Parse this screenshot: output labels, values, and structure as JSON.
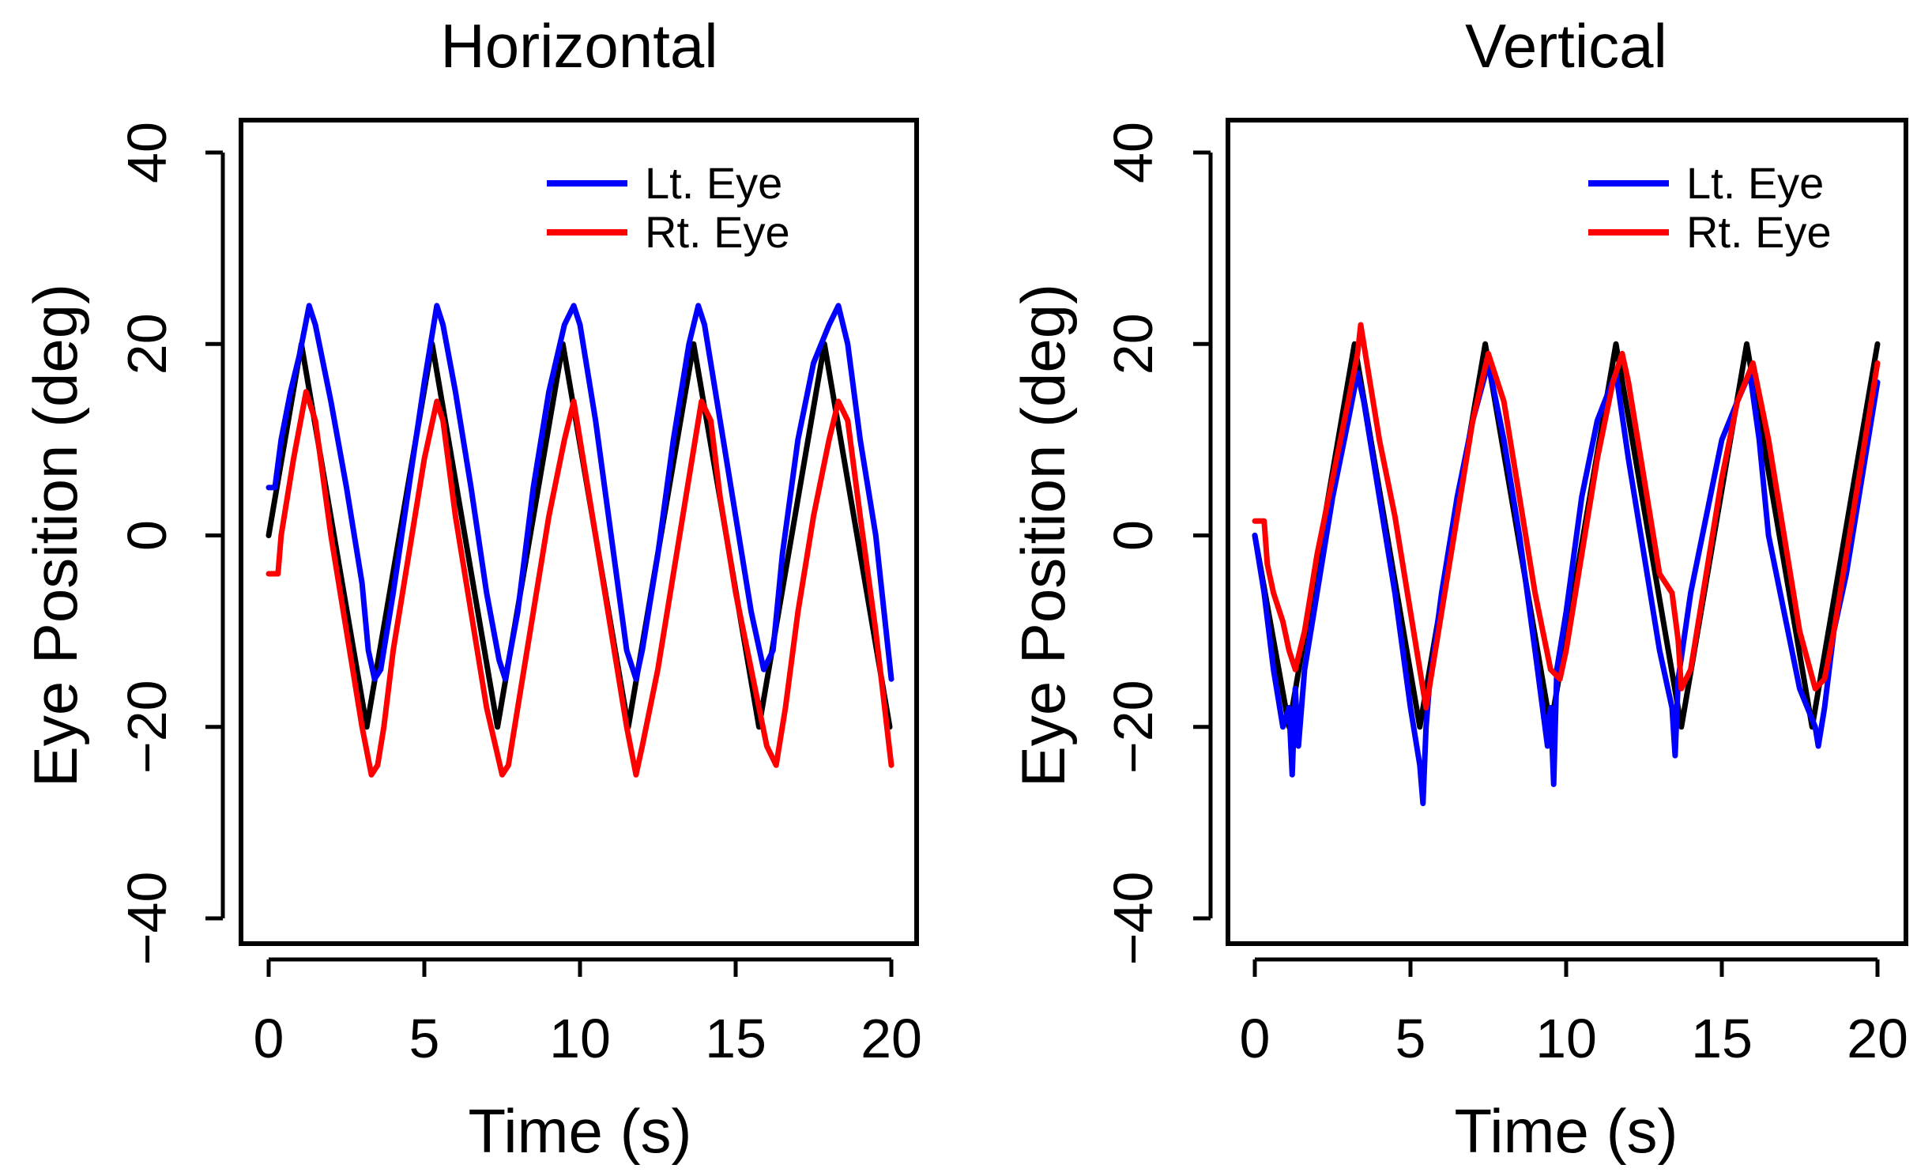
{
  "chart_data": [
    {
      "type": "line",
      "title": "Horizontal",
      "xlabel": "Time (s)",
      "ylabel": "Eye Position (deg)",
      "xlim": [
        0,
        20
      ],
      "ylim": [
        -40,
        40
      ],
      "xticks": [
        0,
        5,
        10,
        15,
        20
      ],
      "xtick_labels": [
        "0",
        "5",
        "10",
        "15",
        "20"
      ],
      "yticks": [
        -40,
        -20,
        0,
        20,
        40
      ],
      "ytick_labels": [
        "−40",
        "−20",
        "0",
        "20",
        "40"
      ],
      "grid": false,
      "legend": {
        "position": "top-right",
        "entries": [
          "Lt. Eye",
          "Rt. Eye"
        ]
      },
      "series": [
        {
          "name": "Target",
          "color": "#000000",
          "in_legend": false,
          "x": [
            0,
            1.05,
            3.15,
            5.25,
            7.35,
            9.45,
            11.55,
            13.65,
            15.75,
            17.85,
            19.95
          ],
          "y": [
            0,
            20,
            -20,
            20,
            -20,
            20,
            -20,
            20,
            -20,
            20,
            -20
          ]
        },
        {
          "name": "Lt. Eye",
          "color": "#0000ff",
          "in_legend": true,
          "x": [
            0,
            0.2,
            0.4,
            0.7,
            1.0,
            1.3,
            1.5,
            2.0,
            2.5,
            3.0,
            3.2,
            3.4,
            3.6,
            4.0,
            4.5,
            5.0,
            5.4,
            5.6,
            6.0,
            6.5,
            7.0,
            7.4,
            7.6,
            8.0,
            8.5,
            9.0,
            9.5,
            9.8,
            10.0,
            10.5,
            11.0,
            11.5,
            11.8,
            12.0,
            12.5,
            13.0,
            13.5,
            13.8,
            14.0,
            14.5,
            15.0,
            15.5,
            15.9,
            16.2,
            16.5,
            17.0,
            17.5,
            18.0,
            18.3,
            18.6,
            19.0,
            19.5,
            20.0
          ],
          "y": [
            5,
            5,
            10,
            15,
            19,
            24,
            22,
            14,
            5,
            -5,
            -12,
            -15,
            -14,
            -6,
            5,
            16,
            24,
            22,
            15,
            5,
            -6,
            -13,
            -15,
            -8,
            5,
            15,
            22,
            24,
            22,
            12,
            0,
            -12,
            -15,
            -12,
            -2,
            10,
            20,
            24,
            22,
            12,
            2,
            -8,
            -14,
            -12,
            -2,
            10,
            18,
            22,
            24,
            20,
            10,
            0,
            -15
          ]
        },
        {
          "name": "Rt. Eye",
          "color": "#ff0000",
          "in_legend": true,
          "x": [
            0,
            0.3,
            0.4,
            0.8,
            1.2,
            1.5,
            2.0,
            2.5,
            3.0,
            3.3,
            3.5,
            3.7,
            4.0,
            4.5,
            5.0,
            5.4,
            5.6,
            6.0,
            6.5,
            7.0,
            7.5,
            7.7,
            8.0,
            8.5,
            9.0,
            9.5,
            9.8,
            10.0,
            10.5,
            11.0,
            11.5,
            11.8,
            12.0,
            12.5,
            13.0,
            13.5,
            13.9,
            14.2,
            14.5,
            15.0,
            15.5,
            16.0,
            16.3,
            16.6,
            17.0,
            17.5,
            18.0,
            18.3,
            18.6,
            19.0,
            19.5,
            20.0
          ],
          "y": [
            -4,
            -4,
            0,
            8,
            15,
            12,
            0,
            -10,
            -20,
            -25,
            -24,
            -20,
            -12,
            -2,
            8,
            14,
            12,
            2,
            -8,
            -18,
            -25,
            -24,
            -18,
            -8,
            2,
            10,
            14,
            10,
            0,
            -10,
            -20,
            -25,
            -22,
            -14,
            -4,
            6,
            14,
            12,
            4,
            -6,
            -14,
            -22,
            -24,
            -18,
            -8,
            2,
            10,
            14,
            12,
            2,
            -10,
            -24
          ]
        }
      ]
    },
    {
      "type": "line",
      "title": "Vertical",
      "xlabel": "Time (s)",
      "ylabel": "Eye Position (deg)",
      "xlim": [
        0,
        20
      ],
      "ylim": [
        -40,
        40
      ],
      "xticks": [
        0,
        5,
        10,
        15,
        20
      ],
      "xtick_labels": [
        "0",
        "5",
        "10",
        "15",
        "20"
      ],
      "yticks": [
        -40,
        -20,
        0,
        20,
        40
      ],
      "ytick_labels": [
        "−40",
        "−20",
        "0",
        "20",
        "40"
      ],
      "grid": false,
      "legend": {
        "position": "top-right",
        "entries": [
          "Lt. Eye",
          "Rt. Eye"
        ]
      },
      "series": [
        {
          "name": "Target",
          "color": "#000000",
          "in_legend": false,
          "x": [
            0,
            1.1,
            3.2,
            5.3,
            7.4,
            9.5,
            11.6,
            13.7,
            15.8,
            17.9,
            20.0
          ],
          "y": [
            0,
            -20,
            20,
            -20,
            20,
            -20,
            20,
            -20,
            20,
            -20,
            20
          ]
        },
        {
          "name": "Lt. Eye",
          "color": "#0000ff",
          "in_legend": true,
          "x": [
            0,
            0.3,
            0.6,
            0.9,
            1.1,
            1.2,
            1.3,
            1.4,
            1.6,
            2.0,
            2.5,
            3.0,
            3.3,
            3.5,
            4.0,
            4.5,
            5.0,
            5.3,
            5.4,
            5.5,
            5.6,
            6.0,
            6.5,
            7.0,
            7.5,
            8.0,
            8.5,
            9.0,
            9.4,
            9.5,
            9.6,
            9.7,
            10.0,
            10.5,
            11.0,
            11.6,
            12.0,
            12.5,
            13.0,
            13.4,
            13.5,
            13.6,
            14.0,
            14.5,
            15.0,
            15.5,
            15.9,
            16.2,
            16.5,
            17.0,
            17.5,
            18.0,
            18.1,
            18.3,
            18.6,
            19.0,
            19.5,
            20.0
          ],
          "y": [
            0,
            -6,
            -14,
            -20,
            -18,
            -25,
            -16,
            -22,
            -14,
            -6,
            4,
            12,
            17,
            14,
            4,
            -6,
            -18,
            -24,
            -28,
            -20,
            -16,
            -6,
            4,
            12,
            18,
            10,
            0,
            -12,
            -22,
            -18,
            -26,
            -14,
            -8,
            4,
            12,
            17,
            8,
            -2,
            -12,
            -18,
            -23,
            -15,
            -6,
            2,
            10,
            14,
            17,
            10,
            0,
            -8,
            -16,
            -20,
            -22,
            -18,
            -10,
            -4,
            6,
            16
          ]
        },
        {
          "name": "Rt. Eye",
          "color": "#ff0000",
          "in_legend": true,
          "x": [
            0,
            0.3,
            0.4,
            0.6,
            0.9,
            1.1,
            1.3,
            1.6,
            2.0,
            2.5,
            3.0,
            3.3,
            3.4,
            3.6,
            4.0,
            4.5,
            5.0,
            5.3,
            5.5,
            5.7,
            6.0,
            6.5,
            7.0,
            7.5,
            8.0,
            8.5,
            9.0,
            9.5,
            9.8,
            10.0,
            10.5,
            11.0,
            11.5,
            11.8,
            12.0,
            12.5,
            13.0,
            13.4,
            13.6,
            13.7,
            14.0,
            14.5,
            15.0,
            15.5,
            16.0,
            16.5,
            17.0,
            17.5,
            18.0,
            18.3,
            18.6,
            19.0,
            19.5,
            20.0
          ],
          "y": [
            1.5,
            1.5,
            -3,
            -6,
            -9,
            -12,
            -14,
            -10,
            -2,
            6,
            14,
            19,
            22,
            18,
            10,
            2,
            -8,
            -14,
            -18,
            -14,
            -8,
            2,
            12,
            19,
            14,
            4,
            -6,
            -14,
            -15,
            -12,
            -2,
            8,
            16,
            19,
            16,
            6,
            -4,
            -6,
            -11,
            -16,
            -14,
            -4,
            6,
            14,
            18,
            10,
            0,
            -10,
            -16,
            -15,
            -10,
            -2,
            8,
            18
          ]
        }
      ]
    }
  ]
}
